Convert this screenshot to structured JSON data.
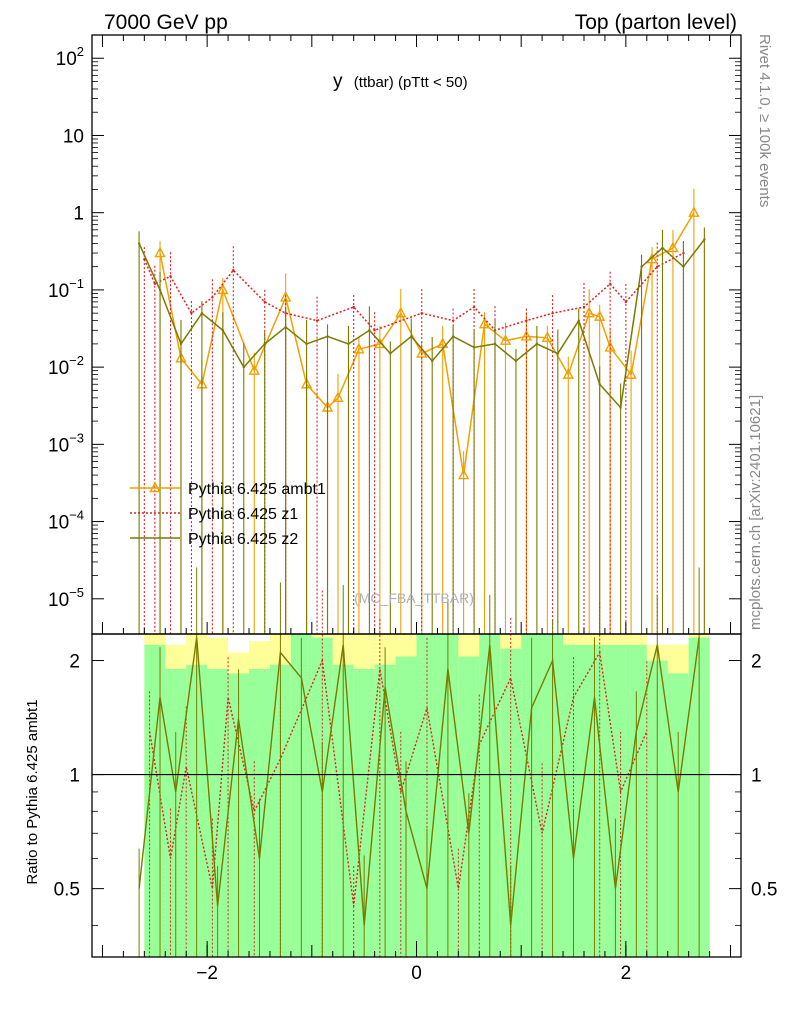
{
  "header": {
    "left": "7000 GeV pp",
    "right": "Top (parton level)"
  },
  "side": {
    "rivet": "Rivet 4.1.0, ≥ 100k events",
    "mcplots": "mcplots.cern.ch [arXiv:2401.10621]"
  },
  "chart_data": {
    "type": "line",
    "title": "y (ttbar) (pTtt < 50)",
    "title_main": "y",
    "title_sub": "(ttbar)  (pTtt < 50)",
    "watermark": "(MC_FBA_TTBAR)",
    "xlabel": "",
    "ylabel_ratio": "Ratio to Pythia 6.425 ambt1",
    "xlim": [
      -3.1,
      3.1
    ],
    "ylim_log": [
      3.5e-06,
      200
    ],
    "ratio_ylim": [
      0.33,
      2.35
    ],
    "x_ticks": [
      {
        "v": -2,
        "label": "−2"
      },
      {
        "v": 0,
        "label": "0"
      },
      {
        "v": 2,
        "label": "2"
      }
    ],
    "y_ticks": [
      {
        "v": 100,
        "base": "10",
        "exp": "2"
      },
      {
        "v": 10,
        "base": "10",
        "exp": ""
      },
      {
        "v": 1,
        "base": "1",
        "exp": ""
      },
      {
        "v": 0.1,
        "base": "10",
        "exp": "−1"
      },
      {
        "v": 0.01,
        "base": "10",
        "exp": "−2"
      },
      {
        "v": 0.001,
        "base": "10",
        "exp": "−3"
      },
      {
        "v": 0.0001,
        "base": "10",
        "exp": "−4"
      },
      {
        "v": 1e-05,
        "base": "10",
        "exp": "−5"
      }
    ],
    "ratio_ticks": [
      {
        "v": 0.5,
        "label": "0.5"
      },
      {
        "v": 1,
        "label": "1"
      },
      {
        "v": 2,
        "label": "2"
      }
    ],
    "legend_position": "middle-left",
    "series": [
      {
        "name": "Pythia 6.425 ambt1",
        "color": "#f0a000",
        "style": "solid",
        "marker": "triangle",
        "x": [
          -2.45,
          -2.25,
          -2.05,
          -1.85,
          -1.55,
          -1.25,
          -1.05,
          -0.85,
          -0.75,
          -0.55,
          -0.35,
          -0.15,
          0.05,
          0.25,
          0.45,
          0.65,
          0.85,
          1.05,
          1.25,
          1.45,
          1.65,
          1.75,
          1.85,
          2.05,
          2.25,
          2.45,
          2.65
        ],
        "values": [
          0.3,
          0.013,
          0.006,
          0.1,
          0.009,
          0.08,
          0.006,
          0.003,
          0.004,
          0.017,
          0.02,
          0.05,
          0.015,
          0.02,
          0.0004,
          0.036,
          0.022,
          0.025,
          0.024,
          0.008,
          0.05,
          0.045,
          0.018,
          0.008,
          0.25,
          0.35,
          1.0
        ]
      },
      {
        "name": "Pythia 6.425 z1",
        "color": "#e02020",
        "style": "dotted",
        "marker": "none",
        "x": [
          -2.6,
          -2.5,
          -2.35,
          -2.15,
          -1.95,
          -1.75,
          -1.45,
          -1.25,
          -0.95,
          -0.6,
          -0.4,
          0.05,
          0.35,
          0.55,
          0.75,
          1.05,
          1.3,
          1.6,
          1.85,
          2.0,
          2.3,
          2.55
        ],
        "values": [
          0.25,
          0.12,
          0.15,
          0.05,
          0.08,
          0.18,
          0.07,
          0.05,
          0.04,
          0.06,
          0.03,
          0.05,
          0.04,
          0.06,
          0.03,
          0.04,
          0.05,
          0.06,
          0.12,
          0.07,
          0.2,
          0.3
        ]
      },
      {
        "name": "Pythia 6.425 z2",
        "color": "#7a7a00",
        "style": "solid",
        "marker": "none",
        "x": [
          -2.65,
          -2.45,
          -2.25,
          -2.05,
          -1.85,
          -1.65,
          -1.45,
          -1.25,
          -1.05,
          -0.85,
          -0.65,
          -0.45,
          -0.25,
          -0.05,
          0.15,
          0.35,
          0.55,
          0.75,
          0.95,
          1.15,
          1.35,
          1.55,
          1.75,
          1.95,
          2.15,
          2.35,
          2.55,
          2.75
        ],
        "values": [
          0.4,
          0.1,
          0.02,
          0.05,
          0.03,
          0.01,
          0.02,
          0.033,
          0.02,
          0.025,
          0.02,
          0.03,
          0.015,
          0.025,
          0.012,
          0.025,
          0.018,
          0.02,
          0.012,
          0.02,
          0.015,
          0.04,
          0.006,
          0.003,
          0.2,
          0.35,
          0.2,
          0.45
        ]
      }
    ],
    "ratio_band": {
      "x_edges": [
        -2.6,
        -2.4,
        -2.2,
        -2.0,
        -1.8,
        -1.6,
        -1.4,
        -1.2,
        -1.0,
        -0.8,
        -0.6,
        -0.4,
        -0.2,
        0.0,
        0.2,
        0.4,
        0.6,
        0.8,
        1.0,
        1.2,
        1.4,
        1.6,
        1.8,
        2.0,
        2.2,
        2.4,
        2.6,
        2.8
      ],
      "green_top": [
        2.2,
        1.9,
        1.95,
        1.9,
        1.85,
        1.9,
        1.95,
        2.35,
        2.3,
        1.95,
        1.9,
        1.95,
        2.05,
        2.35,
        2.35,
        2.05,
        2.35,
        2.15,
        2.35,
        2.35,
        2.2,
        2.2,
        2.2,
        2.2,
        2.0,
        1.85,
        2.3
      ],
      "yellow_top": [
        2.35,
        2.2,
        2.35,
        2.3,
        2.1,
        2.25,
        2.35,
        2.35,
        2.35,
        2.35,
        2.35,
        2.35,
        2.35,
        2.35,
        2.35,
        2.35,
        2.35,
        2.35,
        2.35,
        2.35,
        2.35,
        2.35,
        2.35,
        2.35,
        2.2,
        2.2,
        2.35
      ],
      "yellow_low": [
        0.33,
        0.33,
        0.33,
        0.33,
        0.33,
        0.45,
        0.33,
        0.33,
        0.33,
        0.33,
        0.33,
        0.33,
        0.33,
        0.33,
        0.55,
        0.33,
        0.33,
        0.33,
        0.33,
        0.33,
        0.33,
        0.33,
        0.33,
        0.47,
        0.33,
        0.33,
        0.33
      ],
      "green_low": [
        0.33,
        0.33,
        0.33,
        0.33,
        0.33,
        0.33,
        0.33,
        0.33,
        0.33,
        0.33,
        0.33,
        0.33,
        0.33,
        0.33,
        0.33,
        0.33,
        0.33,
        0.33,
        0.33,
        0.33,
        0.33,
        0.33,
        0.33,
        0.33,
        0.33,
        0.33,
        0.33
      ]
    },
    "ratio_series": [
      {
        "name": "Pythia 6.425 z1",
        "x": [
          -2.55,
          -2.35,
          -2.2,
          -1.95,
          -1.8,
          -1.55,
          -1.3,
          -0.9,
          -0.6,
          -0.35,
          -0.15,
          0.1,
          0.4,
          0.6,
          0.9,
          1.2,
          1.5,
          1.75,
          1.95,
          2.2
        ],
        "values": [
          1.3,
          0.6,
          1.05,
          0.5,
          1.6,
          0.8,
          1.1,
          2.0,
          0.45,
          1.9,
          0.9,
          1.5,
          0.5,
          1.2,
          1.8,
          0.7,
          1.6,
          2.1,
          0.9,
          1.3
        ]
      },
      {
        "name": "Pythia 6.425 z2",
        "x": [
          -2.65,
          -2.45,
          -2.3,
          -2.1,
          -1.9,
          -1.7,
          -1.5,
          -1.3,
          -1.1,
          -0.9,
          -0.7,
          -0.5,
          -0.3,
          -0.1,
          0.1,
          0.3,
          0.5,
          0.7,
          0.9,
          1.1,
          1.3,
          1.5,
          1.7,
          1.9,
          2.1,
          2.3,
          2.5,
          2.7
        ],
        "values": [
          0.5,
          1.6,
          0.9,
          2.3,
          0.45,
          1.4,
          0.6,
          2.1,
          1.8,
          0.9,
          2.2,
          0.4,
          1.7,
          0.8,
          0.5,
          1.9,
          0.7,
          2.2,
          0.4,
          1.5,
          2.0,
          0.6,
          1.6,
          0.5,
          1.3,
          2.2,
          0.9,
          2.3
        ]
      }
    ]
  }
}
